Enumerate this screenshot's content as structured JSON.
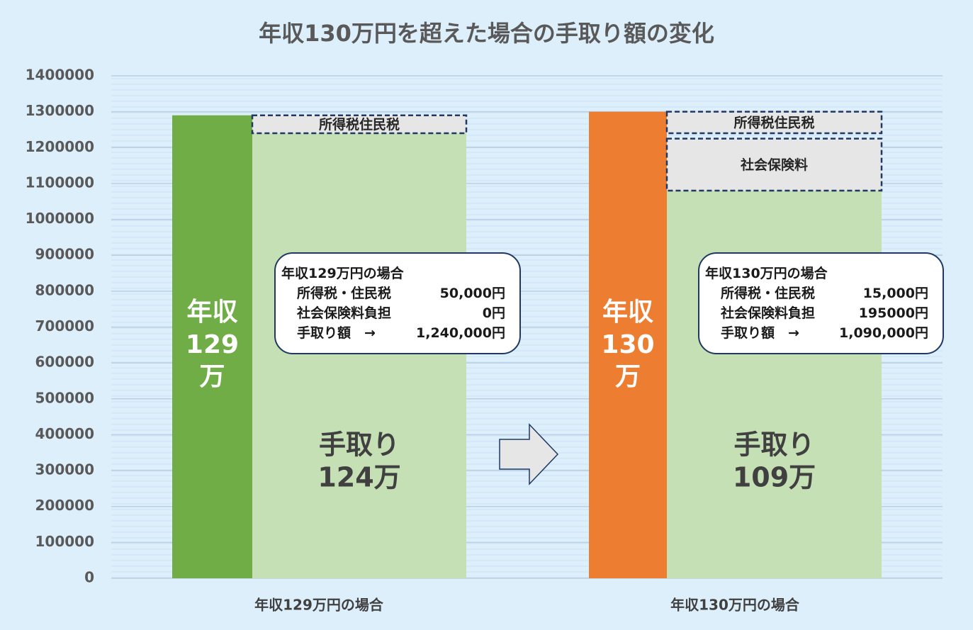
{
  "chart_data": {
    "type": "bar",
    "title": "年収130万円を超えた場合の手取り額の変化",
    "categories": [
      "年収129万円の場合",
      "年収130万円の場合"
    ],
    "yticks": [
      "0",
      "100000",
      "200000",
      "300000",
      "400000",
      "500000",
      "600000",
      "700000",
      "800000",
      "900000",
      "1000000",
      "1100000",
      "1200000",
      "1300000",
      "1400000"
    ],
    "ylim": [
      0,
      1400000
    ],
    "grid": true,
    "series": [
      {
        "values": [
          1290000,
          1300000
        ],
        "colors": [
          "#70ad47",
          "#ed7d31"
        ]
      },
      {
        "values": [
          1240000,
          1090000
        ],
        "color": "#c5e0b4"
      }
    ],
    "deductions": [
      [
        {
          "label": "所得税住民税",
          "from": 1240000,
          "to": 1290000
        }
      ],
      [
        {
          "label": "所得税住民税",
          "from": 1240000,
          "to": 1300000
        },
        {
          "label": "社会保険料",
          "from": 1080000,
          "to": 1225000
        }
      ]
    ],
    "bar_text": [
      {
        "gross": [
          "年収",
          "129",
          "万"
        ],
        "net": [
          "手取り",
          "124万"
        ]
      },
      {
        "gross": [
          "年収",
          "130",
          "万"
        ],
        "net": [
          "手取り",
          "109万"
        ]
      }
    ],
    "deduction_color": "#e7e6e6",
    "deduction_border": "#1f3864"
  },
  "callouts": [
    {
      "title": "年収129万円の場合",
      "rows": [
        {
          "label": "所得税・住民税",
          "value": "50,000円"
        },
        {
          "label": "社会保険料負担",
          "value": "0円"
        },
        {
          "label": "手取り額　→",
          "value": "1,240,000円"
        }
      ]
    },
    {
      "title": "年収130万円の場合",
      "rows": [
        {
          "label": "所得税・住民税",
          "value": "15,000円"
        },
        {
          "label": "社会保険料負担",
          "value": "195000円"
        },
        {
          "label": "手取り額　→",
          "value": "1,090,000円"
        }
      ]
    }
  ]
}
